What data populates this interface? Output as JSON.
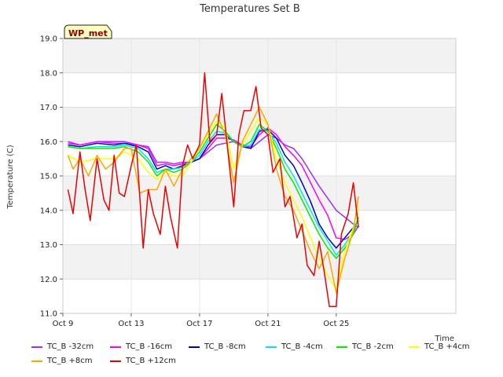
{
  "chart_data": {
    "type": "line",
    "title": "Temperatures Set B",
    "xlabel": "Time",
    "ylabel": "Temperature (C)",
    "ylim": [
      11.0,
      19.0
    ],
    "xlim": [
      0,
      23
    ],
    "yticks": [
      "11.0",
      "12.0",
      "13.0",
      "14.0",
      "15.0",
      "16.0",
      "17.0",
      "18.0",
      "19.0"
    ],
    "xticks": [
      {
        "x": 0,
        "label": "Oct 9"
      },
      {
        "x": 4,
        "label": "Oct 13"
      },
      {
        "x": 8,
        "label": "Oct 17"
      },
      {
        "x": 12,
        "label": "Oct 21"
      },
      {
        "x": 16,
        "label": "Oct 25"
      }
    ],
    "annotation": "WP_met",
    "grid": true,
    "legend_position": "bottom",
    "series": [
      {
        "name": "TC_B -32cm",
        "color": "#9b30ff",
        "x": [
          0.3,
          1,
          2,
          3,
          3.6,
          4.4,
          5,
          5.5,
          6,
          6.5,
          7,
          7.5,
          8,
          8.5,
          9,
          9.5,
          10,
          10.5,
          11,
          11.5,
          12,
          12.5,
          13,
          13.5,
          14,
          14.5,
          15,
          15.5,
          16,
          16.5,
          17,
          17.3
        ],
        "y": [
          16.0,
          15.9,
          16.0,
          16.0,
          16.0,
          15.9,
          15.85,
          15.4,
          15.4,
          15.35,
          15.4,
          15.4,
          15.5,
          15.7,
          15.9,
          15.95,
          16.0,
          15.9,
          15.8,
          16.0,
          16.2,
          16.1,
          15.9,
          15.8,
          15.5,
          15.1,
          14.7,
          14.35,
          14.0,
          13.8,
          13.6,
          13.5
        ]
      },
      {
        "name": "TC_B -16cm",
        "color": "#ff00ff",
        "x": [
          0.3,
          1,
          2,
          3,
          3.6,
          4.4,
          5,
          5.5,
          6,
          6.5,
          7,
          7.5,
          8,
          8.5,
          9,
          9.5,
          10,
          10.5,
          11,
          11.5,
          12,
          12.5,
          13,
          13.5,
          14,
          14.5,
          15,
          15.5,
          16,
          16.5,
          17,
          17.3
        ],
        "y": [
          15.95,
          15.9,
          16.0,
          15.95,
          15.95,
          15.9,
          15.8,
          15.3,
          15.35,
          15.3,
          15.35,
          15.4,
          15.5,
          15.8,
          16.1,
          16.1,
          16.05,
          15.9,
          15.85,
          16.2,
          16.4,
          16.2,
          15.85,
          15.6,
          15.3,
          14.8,
          14.3,
          13.85,
          13.2,
          13.15,
          13.3,
          13.55
        ]
      },
      {
        "name": "TC_B -8cm",
        "color": "#0000cd",
        "x": [
          0.3,
          1,
          2,
          3,
          3.6,
          4.4,
          5,
          5.5,
          6,
          6.5,
          7,
          7.5,
          8,
          8.5,
          9,
          9.5,
          10,
          10.5,
          11,
          11.5,
          12,
          12.5,
          13,
          13.5,
          14,
          14.5,
          15,
          15.5,
          16,
          16.5,
          17,
          17.3
        ],
        "y": [
          15.9,
          15.85,
          15.95,
          15.9,
          15.95,
          15.85,
          15.7,
          15.2,
          15.3,
          15.2,
          15.3,
          15.4,
          15.5,
          15.9,
          16.2,
          16.2,
          16.0,
          15.85,
          15.8,
          16.3,
          16.35,
          16.1,
          15.6,
          15.3,
          14.8,
          14.25,
          13.6,
          13.2,
          12.9,
          13.2,
          13.5,
          13.7
        ]
      },
      {
        "name": "TC_B -4cm",
        "color": "#00e5ee",
        "x": [
          0.3,
          1,
          2,
          3,
          3.6,
          4.4,
          5,
          5.5,
          6,
          6.5,
          7,
          7.5,
          8,
          8.5,
          9,
          9.5,
          10,
          10.5,
          11,
          11.5,
          12,
          12.5,
          13,
          13.5,
          14,
          14.5,
          15,
          15.5,
          16,
          16.5,
          17,
          17.3
        ],
        "y": [
          15.85,
          15.8,
          15.85,
          15.85,
          15.9,
          15.8,
          15.5,
          15.1,
          15.2,
          15.2,
          15.25,
          15.4,
          15.6,
          16.0,
          16.3,
          16.25,
          16.0,
          15.85,
          15.9,
          16.35,
          16.3,
          15.95,
          15.4,
          15.0,
          14.5,
          14.0,
          13.5,
          13.1,
          12.7,
          13.0,
          13.4,
          13.8
        ]
      },
      {
        "name": "TC_B -2cm",
        "color": "#00ee00",
        "x": [
          0.3,
          1,
          2,
          3,
          3.6,
          4.4,
          5,
          5.5,
          6,
          6.5,
          7,
          7.5,
          8,
          8.5,
          9,
          9.5,
          10,
          10.5,
          11,
          11.5,
          12,
          12.5,
          13,
          13.5,
          14,
          14.5,
          15,
          15.5,
          16,
          16.5,
          17,
          17.3
        ],
        "y": [
          15.85,
          15.8,
          15.8,
          15.8,
          15.85,
          15.7,
          15.4,
          15.0,
          15.2,
          15.1,
          15.2,
          15.4,
          15.7,
          16.1,
          16.5,
          16.3,
          16.0,
          15.85,
          16.0,
          16.5,
          16.3,
          15.8,
          15.2,
          14.8,
          14.3,
          13.8,
          13.3,
          12.9,
          12.6,
          12.9,
          13.3,
          13.8
        ]
      },
      {
        "name": "TC_B +4cm",
        "color": "#ffff00",
        "x": [
          0.3,
          1,
          2,
          3,
          3.6,
          4.4,
          5,
          5.5,
          6,
          6.5,
          7,
          7.5,
          8,
          8.5,
          9,
          9.5,
          10,
          10.5,
          11,
          11.5,
          12,
          12.5,
          13,
          13.5,
          14,
          14.5,
          15,
          15.5,
          16,
          16.5,
          17,
          17.3
        ],
        "y": [
          15.6,
          15.4,
          15.5,
          15.5,
          15.7,
          15.5,
          15.1,
          14.9,
          15.1,
          15.0,
          15.0,
          15.4,
          15.8,
          16.2,
          16.6,
          16.4,
          15.2,
          15.9,
          16.3,
          16.7,
          16.5,
          15.5,
          14.8,
          14.3,
          13.8,
          13.2,
          12.6,
          12.1,
          11.7,
          12.8,
          13.5,
          14.1
        ]
      },
      {
        "name": "TC_B +8cm",
        "color": "#ffa500",
        "x": [
          0.3,
          0.6,
          1,
          1.5,
          2,
          2.5,
          3,
          3.6,
          4,
          4.5,
          5,
          5.5,
          6,
          6.5,
          7,
          7.5,
          8,
          8.5,
          9,
          9.5,
          10,
          10.5,
          11,
          11.5,
          12,
          12.5,
          13,
          13.5,
          14,
          14.5,
          15,
          15.5,
          16,
          16.5,
          17,
          17.3
        ],
        "y": [
          15.6,
          15.2,
          15.5,
          15.0,
          15.6,
          15.2,
          15.4,
          15.8,
          15.8,
          14.5,
          14.6,
          14.6,
          15.2,
          14.7,
          15.2,
          15.5,
          15.8,
          16.3,
          16.8,
          16.2,
          14.8,
          16.0,
          16.5,
          17.0,
          16.5,
          15.2,
          14.4,
          14.0,
          13.4,
          12.8,
          12.3,
          12.8,
          11.6,
          12.6,
          13.4,
          14.4
        ]
      },
      {
        "name": "TC_B +12cm",
        "color": "#ee0000",
        "x": [
          0.3,
          0.6,
          1,
          1.3,
          1.6,
          2,
          2.4,
          2.7,
          3,
          3.3,
          3.6,
          4,
          4.3,
          4.7,
          5,
          5.3,
          5.7,
          6,
          6.3,
          6.7,
          7,
          7.3,
          7.6,
          8,
          8.3,
          8.6,
          9,
          9.3,
          9.6,
          10,
          10.3,
          10.6,
          11,
          11.3,
          11.6,
          12,
          12.3,
          12.7,
          13,
          13.3,
          13.7,
          14,
          14.3,
          14.7,
          15,
          15.3,
          15.6,
          16,
          16.3,
          16.7,
          17,
          17.3
        ],
        "y": [
          14.6,
          13.9,
          15.7,
          14.6,
          13.7,
          15.5,
          14.3,
          14.0,
          15.6,
          14.5,
          14.4,
          15.3,
          15.9,
          12.9,
          14.6,
          13.9,
          13.3,
          14.7,
          13.8,
          12.9,
          15.3,
          15.9,
          15.5,
          15.9,
          18.0,
          16.0,
          16.2,
          17.4,
          16.0,
          14.1,
          16.2,
          16.9,
          16.9,
          17.6,
          16.4,
          16.2,
          15.1,
          15.5,
          14.1,
          14.4,
          13.2,
          13.6,
          12.4,
          12.1,
          13.1,
          12.2,
          11.2,
          11.2,
          13.3,
          13.9,
          14.8,
          13.5
        ]
      }
    ]
  }
}
